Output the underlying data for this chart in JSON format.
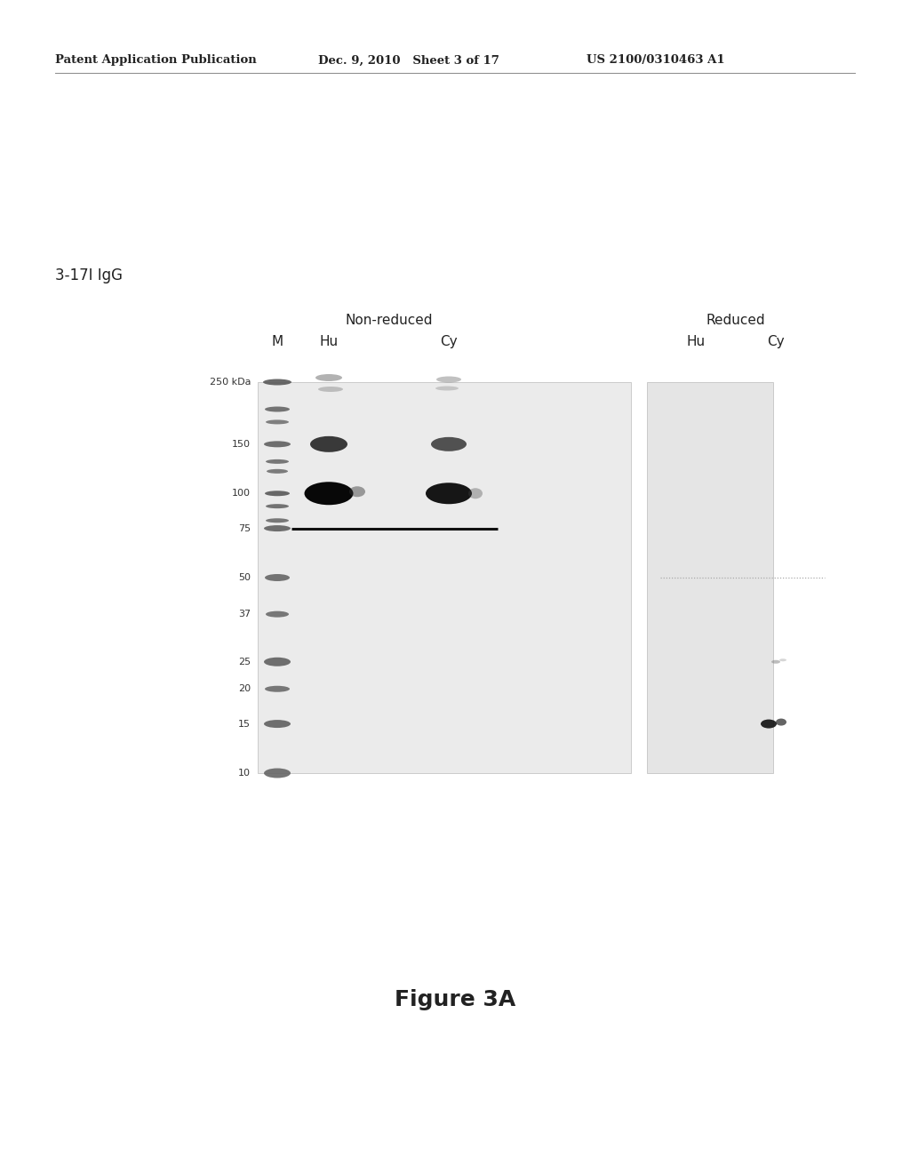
{
  "background_color": "#ffffff",
  "page_header": {
    "left": "Patent Application Publication",
    "center": "Dec. 9, 2010   Sheet 3 of 17",
    "right": "US 2100/0310463 A1",
    "fontsize": 9.5
  },
  "label_3_17I": "3-17I IgG",
  "figure_label": "Figure 3A",
  "gel_label_non_reduced": "Non-reduced",
  "gel_label_reduced": "Reduced",
  "column_labels": [
    "M",
    "Hu",
    "Cy",
    "Hu",
    "Cy"
  ],
  "mw_labels": [
    "250 kDa",
    "150",
    "100",
    "75",
    "50",
    "37",
    "25",
    "20",
    "15",
    "10"
  ],
  "mw_values": [
    250,
    150,
    100,
    75,
    50,
    37,
    25,
    20,
    15,
    10
  ],
  "gel_bg_color": "#ebebeb",
  "gel_bg_color2": "#e5e5e5",
  "gel_border_color": "#bbbbbb",
  "header_line_color": "#888888"
}
